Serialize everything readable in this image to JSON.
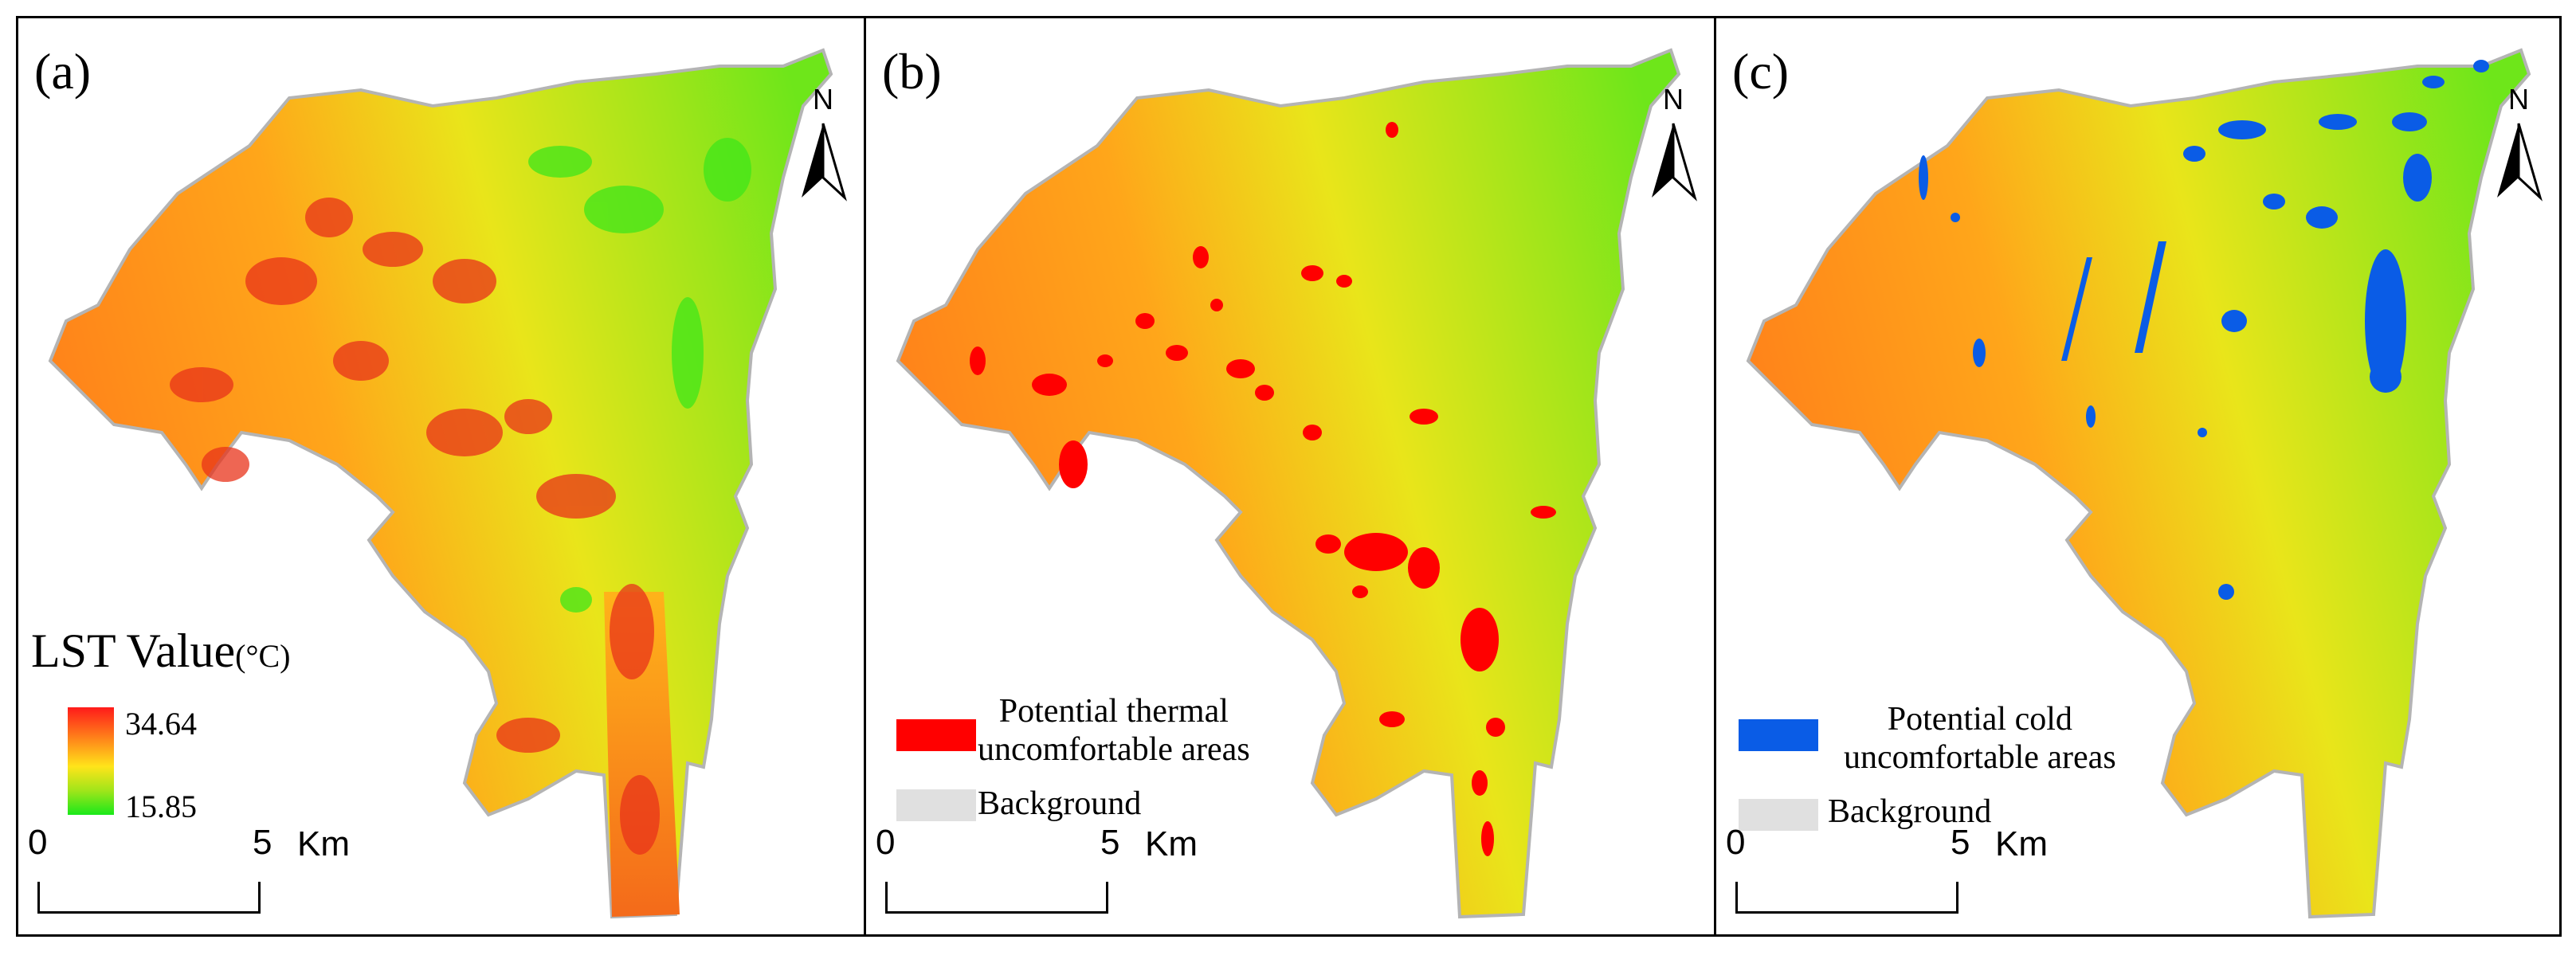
{
  "panels": {
    "a": {
      "label": "(a)",
      "legend_title": "LST Value",
      "legend_unit": "(°C)",
      "max_label": "34.64",
      "min_label": "15.85",
      "ramp_colors": [
        "#ff1a1a",
        "#ff9a1a",
        "#ffe41a",
        "#9ee51a",
        "#1ae81a"
      ]
    },
    "b": {
      "label": "(b)",
      "legend_items": [
        {
          "label_line1": "Potential thermal",
          "label_line2": "uncomfortable areas",
          "color": "#ff0000"
        },
        {
          "label_line1": "Background",
          "label_line2": "",
          "color": "#e0e0e0"
        }
      ]
    },
    "c": {
      "label": "(c)",
      "legend_items": [
        {
          "label_line1": "Potential cold",
          "label_line2": "uncomfortable areas",
          "color": "#0a5ce6"
        },
        {
          "label_line1": "Background",
          "label_line2": "",
          "color": "#e0e0e0"
        }
      ]
    }
  },
  "north_label": "N",
  "scale_bar": {
    "start": "0",
    "mid": "5",
    "unit": "Km"
  },
  "colors": {
    "hot": "#ff0000",
    "cold": "#0a5ce6",
    "background": "#e0e0e0",
    "outline": "#b4b4b4"
  }
}
